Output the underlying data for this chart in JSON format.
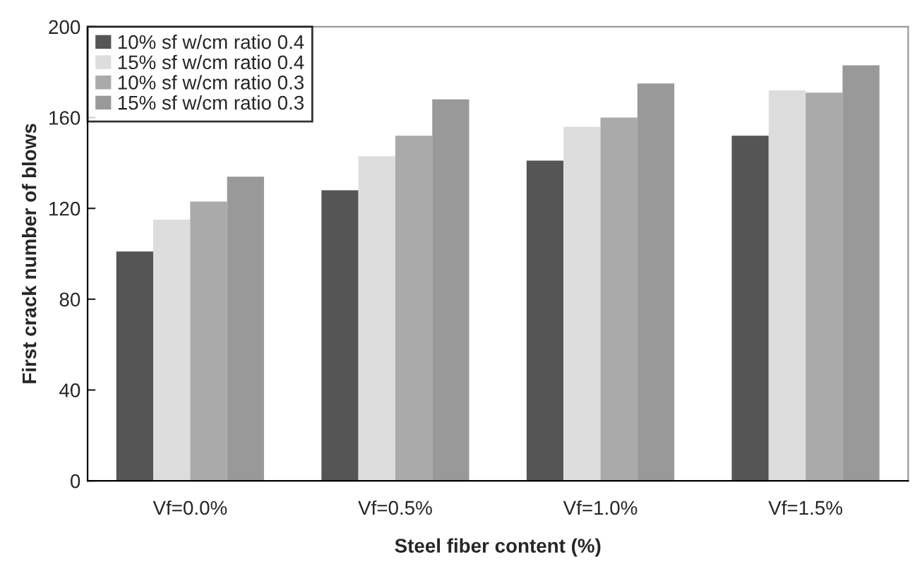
{
  "chart_data": {
    "type": "bar",
    "xlabel": "Steel fiber content (%)",
    "ylabel": "First crack number of blows",
    "categories": [
      "Vf=0.0%",
      "Vf=0.5%",
      "Vf=1.0%",
      "Vf=1.5%"
    ],
    "series": [
      {
        "name": "10% sf w/cm ratio 0.4",
        "color": "#555555",
        "values": [
          101,
          128,
          141,
          152
        ]
      },
      {
        "name": "15% sf w/cm ratio 0.4",
        "color": "#dddddd",
        "values": [
          115,
          143,
          156,
          172
        ]
      },
      {
        "name": "10% sf w/cm ratio 0.3",
        "color": "#aaaaaa",
        "values": [
          123,
          152,
          160,
          171
        ]
      },
      {
        "name": "15% sf w/cm ratio 0.3",
        "color": "#999999",
        "values": [
          134,
          168,
          175,
          183
        ]
      }
    ],
    "ylim": [
      0,
      200
    ],
    "yticks": [
      0,
      40,
      80,
      120,
      160,
      200
    ],
    "grid": false,
    "legend": "top left"
  }
}
